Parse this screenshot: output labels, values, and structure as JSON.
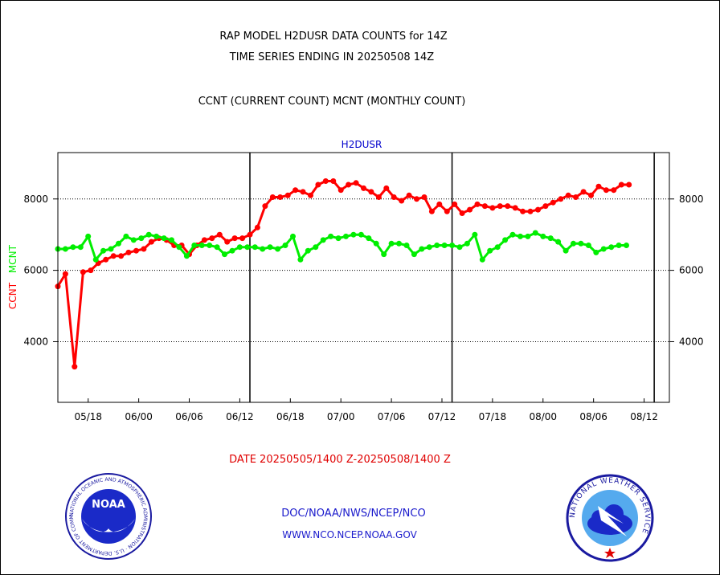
{
  "titles": {
    "line1": "RAP MODEL H2DUSR DATA COUNTS for 14Z",
    "line2": "TIME SERIES ENDING IN 20250508 14Z",
    "line3": "CCNT (CURRENT COUNT) MCNT (MONTHLY COUNT)",
    "plot_label": "H2DUSR",
    "date_range": "DATE 20250505/1400 Z-20250508/1400 Z"
  },
  "footer": {
    "link1": "DOC/NOAA/NWS/NCEP/NCO",
    "link2": "WWW.NCO.NCEP.NOAA.GOV"
  },
  "logos": {
    "left": "noaa-logo",
    "left_text": "NOAA",
    "left_ring_text": "NATIONAL OCEANIC AND ATMOSPHERIC ADMINISTRATION · U.S. DEPARTMENT OF COMMERCE",
    "right": "national-weather-service-logo",
    "right_ring_text": "NATIONAL WEATHER SERVICE"
  },
  "colors": {
    "ccnt": "#ff0000",
    "mcnt": "#00ee00",
    "axis": "#000000",
    "plot_label": "#0000cc",
    "link": "#1a1acc"
  },
  "chart_data": {
    "type": "line",
    "title": "H2DUSR",
    "ylabel_parts": [
      {
        "text": "CCNT",
        "color": "#ff0000"
      },
      {
        "text": "MCNT",
        "color": "#00ee00"
      }
    ],
    "x_ticks": [
      {
        "label": "05/18",
        "x": 6
      },
      {
        "label": "06/00",
        "x": 16
      },
      {
        "label": "06/06",
        "x": 26
      },
      {
        "label": "06/12",
        "x": 36
      },
      {
        "label": "06/18",
        "x": 46
      },
      {
        "label": "07/00",
        "x": 56
      },
      {
        "label": "07/06",
        "x": 66
      },
      {
        "label": "07/12",
        "x": 76
      },
      {
        "label": "07/18",
        "x": 86
      },
      {
        "label": "08/00",
        "x": 96
      },
      {
        "label": "08/06",
        "x": 106
      },
      {
        "label": "08/12",
        "x": 116
      }
    ],
    "day_boundaries": [
      38,
      78,
      118
    ],
    "xlim": [
      0,
      121
    ],
    "ylim": [
      2300,
      9300
    ],
    "y_ticks": [
      4000,
      6000,
      8000
    ],
    "grid": "horizontal dotted at y ticks",
    "series": [
      {
        "key": "ccnt",
        "color": "#ff0000",
        "points": [
          [
            0,
            5550
          ],
          [
            1.5,
            5900
          ],
          [
            3.3,
            3300
          ],
          [
            5,
            5950
          ],
          [
            6.5,
            6000
          ],
          [
            8,
            6200
          ],
          [
            9.5,
            6300
          ],
          [
            11,
            6400
          ],
          [
            12.5,
            6400
          ],
          [
            14,
            6500
          ],
          [
            15.5,
            6550
          ],
          [
            17,
            6600
          ],
          [
            18.5,
            6800
          ],
          [
            20,
            6900
          ],
          [
            21.5,
            6850
          ],
          [
            23,
            6700
          ],
          [
            24.5,
            6700
          ],
          [
            26,
            6450
          ],
          [
            27.5,
            6700
          ],
          [
            29,
            6850
          ],
          [
            30.5,
            6900
          ],
          [
            32,
            7000
          ],
          [
            33.5,
            6800
          ],
          [
            35,
            6900
          ],
          [
            36.5,
            6900
          ],
          [
            38,
            7000
          ],
          [
            39.5,
            7200
          ],
          [
            41,
            7800
          ],
          [
            42.5,
            8050
          ],
          [
            44,
            8050
          ],
          [
            45.5,
            8100
          ],
          [
            47,
            8250
          ],
          [
            48.5,
            8200
          ],
          [
            50,
            8100
          ],
          [
            51.5,
            8400
          ],
          [
            53,
            8500
          ],
          [
            54.5,
            8500
          ],
          [
            56,
            8250
          ],
          [
            57.5,
            8400
          ],
          [
            59,
            8450
          ],
          [
            60.5,
            8300
          ],
          [
            62,
            8200
          ],
          [
            63.5,
            8050
          ],
          [
            65,
            8300
          ],
          [
            66.5,
            8050
          ],
          [
            68,
            7950
          ],
          [
            69.5,
            8100
          ],
          [
            71,
            8000
          ],
          [
            72.5,
            8050
          ],
          [
            74,
            7650
          ],
          [
            75.5,
            7850
          ],
          [
            77,
            7650
          ],
          [
            78.5,
            7850
          ],
          [
            80,
            7600
          ],
          [
            81.5,
            7700
          ],
          [
            83,
            7850
          ],
          [
            84.5,
            7800
          ],
          [
            86,
            7750
          ],
          [
            87.5,
            7800
          ],
          [
            89,
            7800
          ],
          [
            90.5,
            7750
          ],
          [
            92,
            7650
          ],
          [
            93.5,
            7650
          ],
          [
            95,
            7700
          ],
          [
            96.5,
            7800
          ],
          [
            98,
            7900
          ],
          [
            99.5,
            8000
          ],
          [
            101,
            8100
          ],
          [
            102.5,
            8050
          ],
          [
            104,
            8200
          ],
          [
            105.5,
            8100
          ],
          [
            107,
            8350
          ],
          [
            108.5,
            8250
          ],
          [
            110,
            8250
          ],
          [
            111.5,
            8400
          ],
          [
            113,
            8400
          ]
        ]
      },
      {
        "key": "mcnt",
        "color": "#00ee00",
        "points": [
          [
            0,
            6600
          ],
          [
            1.5,
            6600
          ],
          [
            3,
            6650
          ],
          [
            4.5,
            6650
          ],
          [
            6,
            6950
          ],
          [
            7.5,
            6300
          ],
          [
            9,
            6550
          ],
          [
            10.5,
            6600
          ],
          [
            12,
            6750
          ],
          [
            13.5,
            6950
          ],
          [
            15,
            6850
          ],
          [
            16.5,
            6900
          ],
          [
            18,
            7000
          ],
          [
            19.5,
            6950
          ],
          [
            21,
            6900
          ],
          [
            22.5,
            6850
          ],
          [
            24,
            6650
          ],
          [
            25.5,
            6400
          ],
          [
            27,
            6700
          ],
          [
            28.5,
            6700
          ],
          [
            30,
            6700
          ],
          [
            31.5,
            6650
          ],
          [
            33,
            6450
          ],
          [
            34.5,
            6550
          ],
          [
            36,
            6650
          ],
          [
            37.5,
            6650
          ],
          [
            39,
            6650
          ],
          [
            40.5,
            6600
          ],
          [
            42,
            6650
          ],
          [
            43.5,
            6600
          ],
          [
            45,
            6700
          ],
          [
            46.5,
            6950
          ],
          [
            48,
            6300
          ],
          [
            49.5,
            6550
          ],
          [
            51,
            6650
          ],
          [
            52.5,
            6850
          ],
          [
            54,
            6950
          ],
          [
            55.5,
            6900
          ],
          [
            57,
            6950
          ],
          [
            58.5,
            7000
          ],
          [
            60,
            7000
          ],
          [
            61.5,
            6900
          ],
          [
            63,
            6750
          ],
          [
            64.5,
            6450
          ],
          [
            66,
            6750
          ],
          [
            67.5,
            6750
          ],
          [
            69,
            6700
          ],
          [
            70.5,
            6450
          ],
          [
            72,
            6600
          ],
          [
            73.5,
            6650
          ],
          [
            75,
            6700
          ],
          [
            76.5,
            6700
          ],
          [
            78,
            6700
          ],
          [
            79.5,
            6650
          ],
          [
            81,
            6750
          ],
          [
            82.5,
            7000
          ],
          [
            84,
            6300
          ],
          [
            85.5,
            6550
          ],
          [
            87,
            6650
          ],
          [
            88.5,
            6850
          ],
          [
            90,
            7000
          ],
          [
            91.5,
            6950
          ],
          [
            93,
            6950
          ],
          [
            94.5,
            7050
          ],
          [
            96,
            6950
          ],
          [
            97.5,
            6900
          ],
          [
            99,
            6800
          ],
          [
            100.5,
            6550
          ],
          [
            102,
            6750
          ],
          [
            103.5,
            6750
          ],
          [
            105,
            6700
          ],
          [
            106.5,
            6500
          ],
          [
            108,
            6600
          ],
          [
            109.5,
            6650
          ],
          [
            111,
            6700
          ],
          [
            112.5,
            6700
          ]
        ]
      }
    ]
  }
}
